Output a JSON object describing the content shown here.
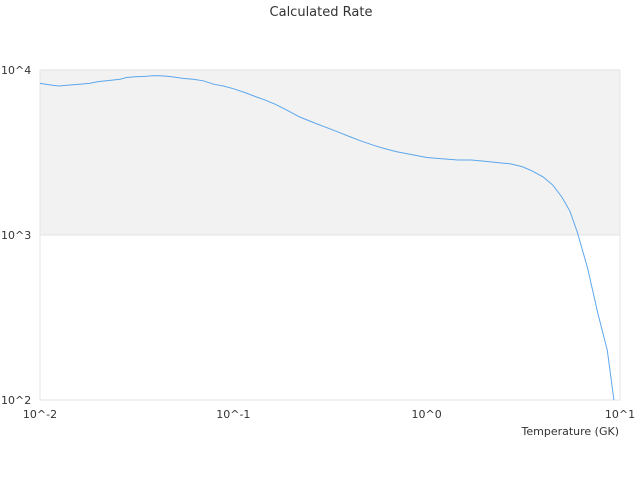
{
  "chart_data": {
    "type": "line",
    "title": "Calculated Rate",
    "xlabel": "Temperature (GK)",
    "ylabel": "",
    "xscale": "log",
    "yscale": "log",
    "xlim": [
      0.01,
      10
    ],
    "ylim": [
      100,
      10000
    ],
    "x_tick_labels": [
      "10^-2",
      "10^-1",
      "10^0",
      "10^1"
    ],
    "x_tick_values": [
      0.01,
      0.1,
      1,
      10
    ],
    "y_tick_labels": [
      "10^2",
      "10^3",
      "10^4"
    ],
    "y_tick_values": [
      100,
      1000,
      10000
    ],
    "grid": false,
    "shaded_band": {
      "y_from": 1000,
      "y_to": 10000,
      "color": "#f2f2f2"
    },
    "legend": "none",
    "series": [
      {
        "color": "#5ca7ec",
        "x": [
          0.01,
          0.0115,
          0.0125,
          0.014,
          0.016,
          0.018,
          0.02,
          0.023,
          0.026,
          0.028,
          0.031,
          0.035,
          0.039,
          0.044,
          0.048,
          0.055,
          0.062,
          0.07,
          0.079,
          0.089,
          0.1,
          0.115,
          0.13,
          0.145,
          0.165,
          0.19,
          0.22,
          0.26,
          0.3,
          0.35,
          0.4,
          0.46,
          0.53,
          0.6,
          0.7,
          0.8,
          1.0,
          1.2,
          1.45,
          1.7,
          2.0,
          2.3,
          2.7,
          3.1,
          3.5,
          4.0,
          4.5,
          5.0,
          5.5,
          6.0,
          6.8,
          7.7,
          8.6,
          9.3
        ],
        "y": [
          8300,
          8100,
          8000,
          8100,
          8200,
          8300,
          8500,
          8650,
          8800,
          9000,
          9100,
          9150,
          9250,
          9200,
          9100,
          8900,
          8800,
          8600,
          8200,
          8000,
          7700,
          7300,
          6900,
          6600,
          6200,
          5700,
          5200,
          4800,
          4500,
          4200,
          3950,
          3700,
          3500,
          3350,
          3200,
          3100,
          2950,
          2900,
          2850,
          2850,
          2800,
          2750,
          2700,
          2600,
          2450,
          2250,
          2000,
          1700,
          1400,
          1050,
          630,
          330,
          200,
          100
        ]
      }
    ]
  }
}
